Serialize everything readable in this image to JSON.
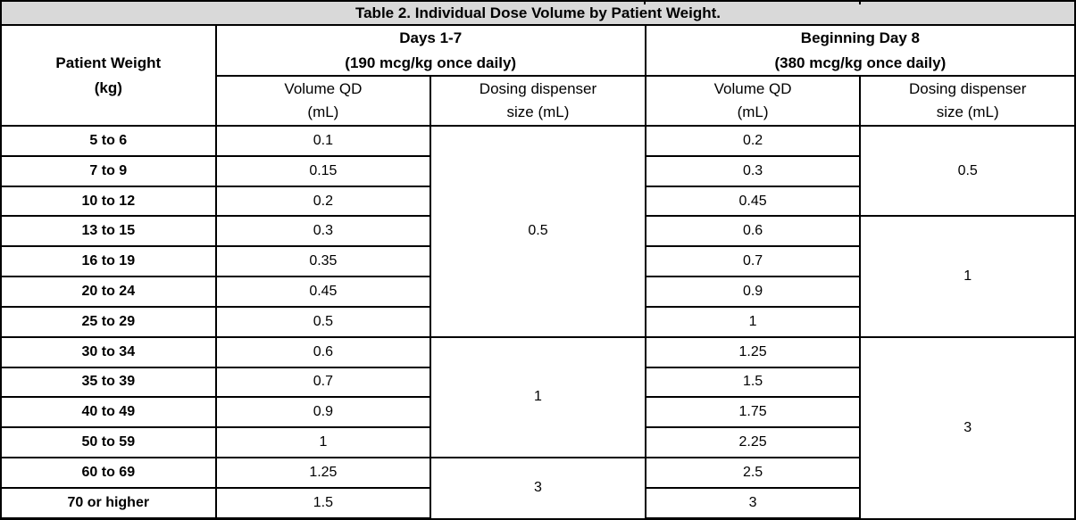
{
  "colors": {
    "title_row_bg": "#d9d9d9",
    "border": "#000000",
    "text": "#000000"
  },
  "table": {
    "title": "Table 2. Individual Dose Volume by Patient Weight.",
    "header": {
      "patient_weight": {
        "line1": "Patient Weight",
        "line2": "(kg)"
      },
      "groups": [
        {
          "line1": "Days 1-7",
          "line2": "(190 mcg/kg once daily)",
          "subcolumns": [
            {
              "line1": "Volume QD",
              "line2": "(mL)"
            },
            {
              "line1": "Dosing dispenser",
              "line2": "size (mL)"
            }
          ]
        },
        {
          "line1": "Beginning Day 8",
          "line2": "(380 mcg/kg once daily)",
          "subcolumns": [
            {
              "line1": "Volume QD",
              "line2": "(mL)"
            },
            {
              "line1": "Dosing dispenser",
              "line2": "size (mL)"
            }
          ]
        }
      ]
    },
    "rows": [
      {
        "weight": "5 to 6",
        "vol_days1_7": "0.1",
        "disp_days1_7": {
          "value": "0.5",
          "rowspan": 7
        },
        "vol_day8": "0.2",
        "disp_day8": {
          "value": "0.5",
          "rowspan": 3
        }
      },
      {
        "weight": "7 to 9",
        "vol_days1_7": "0.15",
        "vol_day8": "0.3"
      },
      {
        "weight": "10 to 12",
        "vol_days1_7": "0.2",
        "vol_day8": "0.45"
      },
      {
        "weight": "13 to 15",
        "vol_days1_7": "0.3",
        "vol_day8": "0.6",
        "disp_day8": {
          "value": "1",
          "rowspan": 4
        }
      },
      {
        "weight": "16 to 19",
        "vol_days1_7": "0.35",
        "vol_day8": "0.7"
      },
      {
        "weight": "20 to 24",
        "vol_days1_7": "0.45",
        "vol_day8": "0.9"
      },
      {
        "weight": "25 to 29",
        "vol_days1_7": "0.5",
        "vol_day8": "1"
      },
      {
        "weight": "30 to 34",
        "vol_days1_7": "0.6",
        "disp_days1_7": {
          "value": "1",
          "rowspan": 4
        },
        "vol_day8": "1.25",
        "disp_day8": {
          "value": "3",
          "rowspan": 6
        }
      },
      {
        "weight": "35 to 39",
        "vol_days1_7": "0.7",
        "vol_day8": "1.5"
      },
      {
        "weight": "40 to 49",
        "vol_days1_7": "0.9",
        "vol_day8": "1.75"
      },
      {
        "weight": "50 to 59",
        "vol_days1_7": "1",
        "vol_day8": "2.25"
      },
      {
        "weight": "60 to 69",
        "vol_days1_7": "1.25",
        "disp_days1_7": {
          "value": "3",
          "rowspan": 2
        },
        "vol_day8": "2.5"
      },
      {
        "weight": "70 or higher",
        "vol_days1_7": "1.5",
        "vol_day8": "3"
      }
    ]
  }
}
